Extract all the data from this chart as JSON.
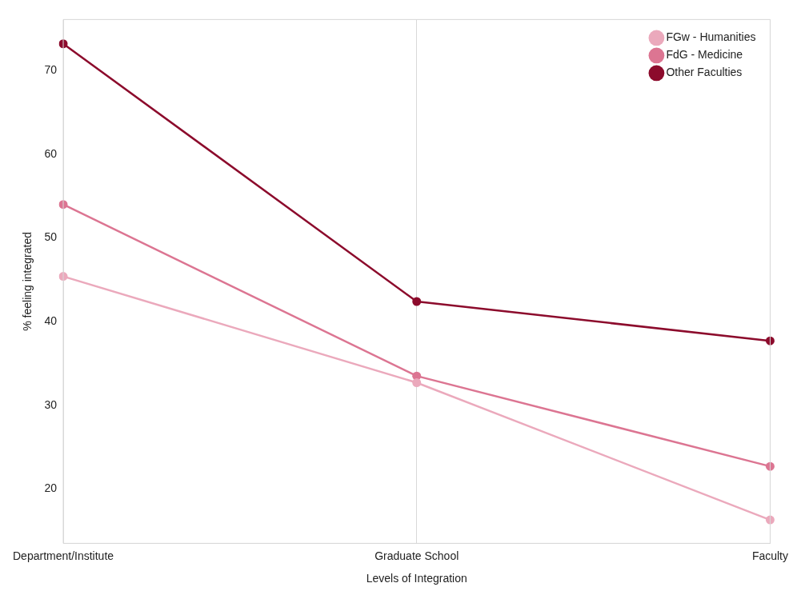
{
  "chart_data": {
    "type": "line",
    "xlabel": "Levels of Integration",
    "ylabel": "% feeling integrated",
    "categories": [
      "Department/Institute",
      "Graduate School",
      "Faculty"
    ],
    "series": [
      {
        "name": "FGw - Humanities",
        "color": "#eba9bc",
        "values": [
          45.4,
          32.7,
          16.3
        ]
      },
      {
        "name": "FdG - Medicine",
        "color": "#dc7592",
        "values": [
          54.0,
          33.5,
          22.7
        ]
      },
      {
        "name": "Other Faculties",
        "color": "#8c0b2c",
        "values": [
          73.2,
          42.4,
          37.7
        ]
      }
    ],
    "ylim": [
      13.5,
      76.1
    ],
    "yticks": [
      20,
      30,
      40,
      50,
      60,
      70
    ],
    "grid": "x",
    "legend": "top right",
    "marker": "circle",
    "line_style": "solid"
  }
}
